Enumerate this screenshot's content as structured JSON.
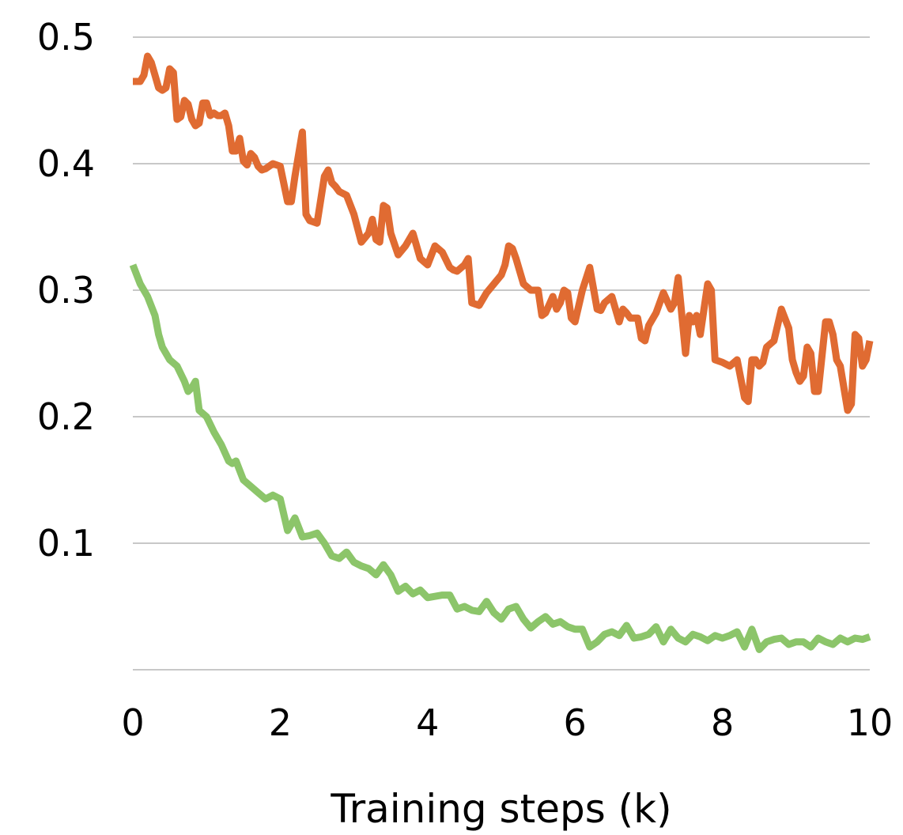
{
  "chart_data": {
    "type": "line",
    "title": "",
    "xlabel": "Training steps (k)",
    "ylabel": "",
    "xlim": [
      0,
      10
    ],
    "ylim": [
      0,
      0.5
    ],
    "xticks": [
      0,
      2,
      4,
      6,
      8,
      10
    ],
    "yticks": [
      0.1,
      0.2,
      0.3,
      0.4,
      0.5
    ],
    "xtick_labels": [
      "0",
      "2",
      "4",
      "6",
      "8",
      "10"
    ],
    "ytick_labels": [
      "0.1",
      "0.2",
      "0.3",
      "0.4",
      "0.5"
    ],
    "grid": true,
    "legend": "none",
    "series": [
      {
        "color": "#E06B32",
        "points": [
          [
            0.0,
            0.465
          ],
          [
            0.1,
            0.465
          ],
          [
            0.15,
            0.47
          ],
          [
            0.2,
            0.485
          ],
          [
            0.25,
            0.48
          ],
          [
            0.3,
            0.47
          ],
          [
            0.35,
            0.46
          ],
          [
            0.4,
            0.458
          ],
          [
            0.45,
            0.46
          ],
          [
            0.5,
            0.475
          ],
          [
            0.55,
            0.472
          ],
          [
            0.6,
            0.435
          ],
          [
            0.65,
            0.437
          ],
          [
            0.7,
            0.45
          ],
          [
            0.75,
            0.447
          ],
          [
            0.8,
            0.435
          ],
          [
            0.85,
            0.43
          ],
          [
            0.9,
            0.432
          ],
          [
            0.95,
            0.448
          ],
          [
            1.0,
            0.448
          ],
          [
            1.05,
            0.438
          ],
          [
            1.1,
            0.44
          ],
          [
            1.15,
            0.438
          ],
          [
            1.2,
            0.438
          ],
          [
            1.25,
            0.44
          ],
          [
            1.3,
            0.43
          ],
          [
            1.35,
            0.41
          ],
          [
            1.4,
            0.41
          ],
          [
            1.45,
            0.42
          ],
          [
            1.5,
            0.402
          ],
          [
            1.55,
            0.399
          ],
          [
            1.6,
            0.408
          ],
          [
            1.65,
            0.405
          ],
          [
            1.7,
            0.398
          ],
          [
            1.75,
            0.395
          ],
          [
            1.8,
            0.396
          ],
          [
            1.9,
            0.4
          ],
          [
            2.0,
            0.398
          ],
          [
            2.1,
            0.37
          ],
          [
            2.15,
            0.37
          ],
          [
            2.2,
            0.39
          ],
          [
            2.3,
            0.425
          ],
          [
            2.35,
            0.36
          ],
          [
            2.4,
            0.355
          ],
          [
            2.5,
            0.353
          ],
          [
            2.6,
            0.39
          ],
          [
            2.65,
            0.395
          ],
          [
            2.7,
            0.385
          ],
          [
            2.75,
            0.382
          ],
          [
            2.8,
            0.378
          ],
          [
            2.9,
            0.375
          ],
          [
            3.0,
            0.36
          ],
          [
            3.1,
            0.338
          ],
          [
            3.2,
            0.345
          ],
          [
            3.25,
            0.356
          ],
          [
            3.3,
            0.34
          ],
          [
            3.35,
            0.338
          ],
          [
            3.4,
            0.367
          ],
          [
            3.45,
            0.365
          ],
          [
            3.5,
            0.345
          ],
          [
            3.6,
            0.328
          ],
          [
            3.7,
            0.335
          ],
          [
            3.8,
            0.345
          ],
          [
            3.9,
            0.325
          ],
          [
            4.0,
            0.32
          ],
          [
            4.1,
            0.335
          ],
          [
            4.2,
            0.33
          ],
          [
            4.3,
            0.318
          ],
          [
            4.35,
            0.316
          ],
          [
            4.4,
            0.315
          ],
          [
            4.5,
            0.32
          ],
          [
            4.55,
            0.325
          ],
          [
            4.6,
            0.29
          ],
          [
            4.7,
            0.288
          ],
          [
            4.8,
            0.298
          ],
          [
            4.9,
            0.305
          ],
          [
            5.0,
            0.312
          ],
          [
            5.05,
            0.32
          ],
          [
            5.1,
            0.335
          ],
          [
            5.15,
            0.333
          ],
          [
            5.2,
            0.325
          ],
          [
            5.3,
            0.305
          ],
          [
            5.4,
            0.3
          ],
          [
            5.5,
            0.3
          ],
          [
            5.55,
            0.28
          ],
          [
            5.6,
            0.282
          ],
          [
            5.7,
            0.295
          ],
          [
            5.75,
            0.285
          ],
          [
            5.8,
            0.29
          ],
          [
            5.85,
            0.3
          ],
          [
            5.9,
            0.298
          ],
          [
            5.95,
            0.278
          ],
          [
            6.0,
            0.275
          ],
          [
            6.1,
            0.3
          ],
          [
            6.2,
            0.318
          ],
          [
            6.3,
            0.285
          ],
          [
            6.35,
            0.284
          ],
          [
            6.4,
            0.29
          ],
          [
            6.5,
            0.295
          ],
          [
            6.6,
            0.275
          ],
          [
            6.65,
            0.285
          ],
          [
            6.7,
            0.282
          ],
          [
            6.75,
            0.278
          ],
          [
            6.85,
            0.278
          ],
          [
            6.9,
            0.262
          ],
          [
            6.95,
            0.26
          ],
          [
            7.0,
            0.272
          ],
          [
            7.1,
            0.282
          ],
          [
            7.2,
            0.298
          ],
          [
            7.3,
            0.285
          ],
          [
            7.35,
            0.29
          ],
          [
            7.4,
            0.31
          ],
          [
            7.5,
            0.25
          ],
          [
            7.55,
            0.28
          ],
          [
            7.6,
            0.275
          ],
          [
            7.65,
            0.28
          ],
          [
            7.7,
            0.265
          ],
          [
            7.8,
            0.305
          ],
          [
            7.85,
            0.3
          ],
          [
            7.9,
            0.245
          ],
          [
            8.0,
            0.243
          ],
          [
            8.1,
            0.24
          ],
          [
            8.2,
            0.245
          ],
          [
            8.3,
            0.215
          ],
          [
            8.35,
            0.212
          ],
          [
            8.4,
            0.245
          ],
          [
            8.45,
            0.245
          ],
          [
            8.5,
            0.24
          ],
          [
            8.55,
            0.243
          ],
          [
            8.6,
            0.255
          ],
          [
            8.7,
            0.26
          ],
          [
            8.8,
            0.285
          ],
          [
            8.9,
            0.27
          ],
          [
            8.95,
            0.245
          ],
          [
            9.0,
            0.235
          ],
          [
            9.05,
            0.228
          ],
          [
            9.1,
            0.232
          ],
          [
            9.15,
            0.255
          ],
          [
            9.2,
            0.25
          ],
          [
            9.25,
            0.22
          ],
          [
            9.3,
            0.22
          ],
          [
            9.4,
            0.275
          ],
          [
            9.45,
            0.275
          ],
          [
            9.5,
            0.265
          ],
          [
            9.55,
            0.245
          ],
          [
            9.6,
            0.24
          ],
          [
            9.7,
            0.205
          ],
          [
            9.75,
            0.21
          ],
          [
            9.8,
            0.265
          ],
          [
            9.85,
            0.262
          ],
          [
            9.9,
            0.24
          ],
          [
            9.95,
            0.245
          ],
          [
            10.0,
            0.26
          ]
        ]
      },
      {
        "color": "#8CC56A",
        "points": [
          [
            0.0,
            0.32
          ],
          [
            0.1,
            0.305
          ],
          [
            0.2,
            0.295
          ],
          [
            0.3,
            0.28
          ],
          [
            0.35,
            0.265
          ],
          [
            0.4,
            0.255
          ],
          [
            0.5,
            0.245
          ],
          [
            0.6,
            0.24
          ],
          [
            0.7,
            0.228
          ],
          [
            0.75,
            0.22
          ],
          [
            0.8,
            0.223
          ],
          [
            0.85,
            0.228
          ],
          [
            0.9,
            0.205
          ],
          [
            1.0,
            0.2
          ],
          [
            1.1,
            0.188
          ],
          [
            1.2,
            0.178
          ],
          [
            1.3,
            0.165
          ],
          [
            1.35,
            0.163
          ],
          [
            1.4,
            0.165
          ],
          [
            1.5,
            0.15
          ],
          [
            1.6,
            0.145
          ],
          [
            1.7,
            0.14
          ],
          [
            1.8,
            0.135
          ],
          [
            1.9,
            0.138
          ],
          [
            2.0,
            0.135
          ],
          [
            2.1,
            0.11
          ],
          [
            2.2,
            0.12
          ],
          [
            2.3,
            0.105
          ],
          [
            2.4,
            0.106
          ],
          [
            2.5,
            0.108
          ],
          [
            2.6,
            0.1
          ],
          [
            2.7,
            0.09
          ],
          [
            2.8,
            0.088
          ],
          [
            2.9,
            0.093
          ],
          [
            3.0,
            0.085
          ],
          [
            3.1,
            0.082
          ],
          [
            3.2,
            0.08
          ],
          [
            3.3,
            0.075
          ],
          [
            3.4,
            0.083
          ],
          [
            3.5,
            0.075
          ],
          [
            3.6,
            0.062
          ],
          [
            3.7,
            0.066
          ],
          [
            3.8,
            0.06
          ],
          [
            3.9,
            0.063
          ],
          [
            4.0,
            0.057
          ],
          [
            4.1,
            0.058
          ],
          [
            4.2,
            0.059
          ],
          [
            4.3,
            0.059
          ],
          [
            4.4,
            0.048
          ],
          [
            4.5,
            0.05
          ],
          [
            4.6,
            0.047
          ],
          [
            4.7,
            0.046
          ],
          [
            4.8,
            0.054
          ],
          [
            4.9,
            0.045
          ],
          [
            5.0,
            0.04
          ],
          [
            5.1,
            0.048
          ],
          [
            5.2,
            0.05
          ],
          [
            5.3,
            0.04
          ],
          [
            5.4,
            0.033
          ],
          [
            5.5,
            0.038
          ],
          [
            5.6,
            0.042
          ],
          [
            5.7,
            0.036
          ],
          [
            5.8,
            0.038
          ],
          [
            5.9,
            0.034
          ],
          [
            6.0,
            0.032
          ],
          [
            6.1,
            0.032
          ],
          [
            6.2,
            0.018
          ],
          [
            6.3,
            0.022
          ],
          [
            6.4,
            0.028
          ],
          [
            6.5,
            0.03
          ],
          [
            6.6,
            0.027
          ],
          [
            6.7,
            0.035
          ],
          [
            6.8,
            0.025
          ],
          [
            6.9,
            0.026
          ],
          [
            7.0,
            0.028
          ],
          [
            7.1,
            0.034
          ],
          [
            7.2,
            0.022
          ],
          [
            7.3,
            0.032
          ],
          [
            7.4,
            0.025
          ],
          [
            7.5,
            0.022
          ],
          [
            7.6,
            0.028
          ],
          [
            7.7,
            0.026
          ],
          [
            7.8,
            0.023
          ],
          [
            7.9,
            0.027
          ],
          [
            8.0,
            0.025
          ],
          [
            8.1,
            0.027
          ],
          [
            8.2,
            0.03
          ],
          [
            8.3,
            0.018
          ],
          [
            8.4,
            0.032
          ],
          [
            8.5,
            0.016
          ],
          [
            8.6,
            0.022
          ],
          [
            8.7,
            0.024
          ],
          [
            8.8,
            0.025
          ],
          [
            8.9,
            0.02
          ],
          [
            9.0,
            0.022
          ],
          [
            9.1,
            0.022
          ],
          [
            9.2,
            0.018
          ],
          [
            9.3,
            0.025
          ],
          [
            9.4,
            0.022
          ],
          [
            9.5,
            0.02
          ],
          [
            9.6,
            0.025
          ],
          [
            9.7,
            0.022
          ],
          [
            9.8,
            0.025
          ],
          [
            9.9,
            0.024
          ],
          [
            10.0,
            0.026
          ]
        ]
      }
    ]
  }
}
